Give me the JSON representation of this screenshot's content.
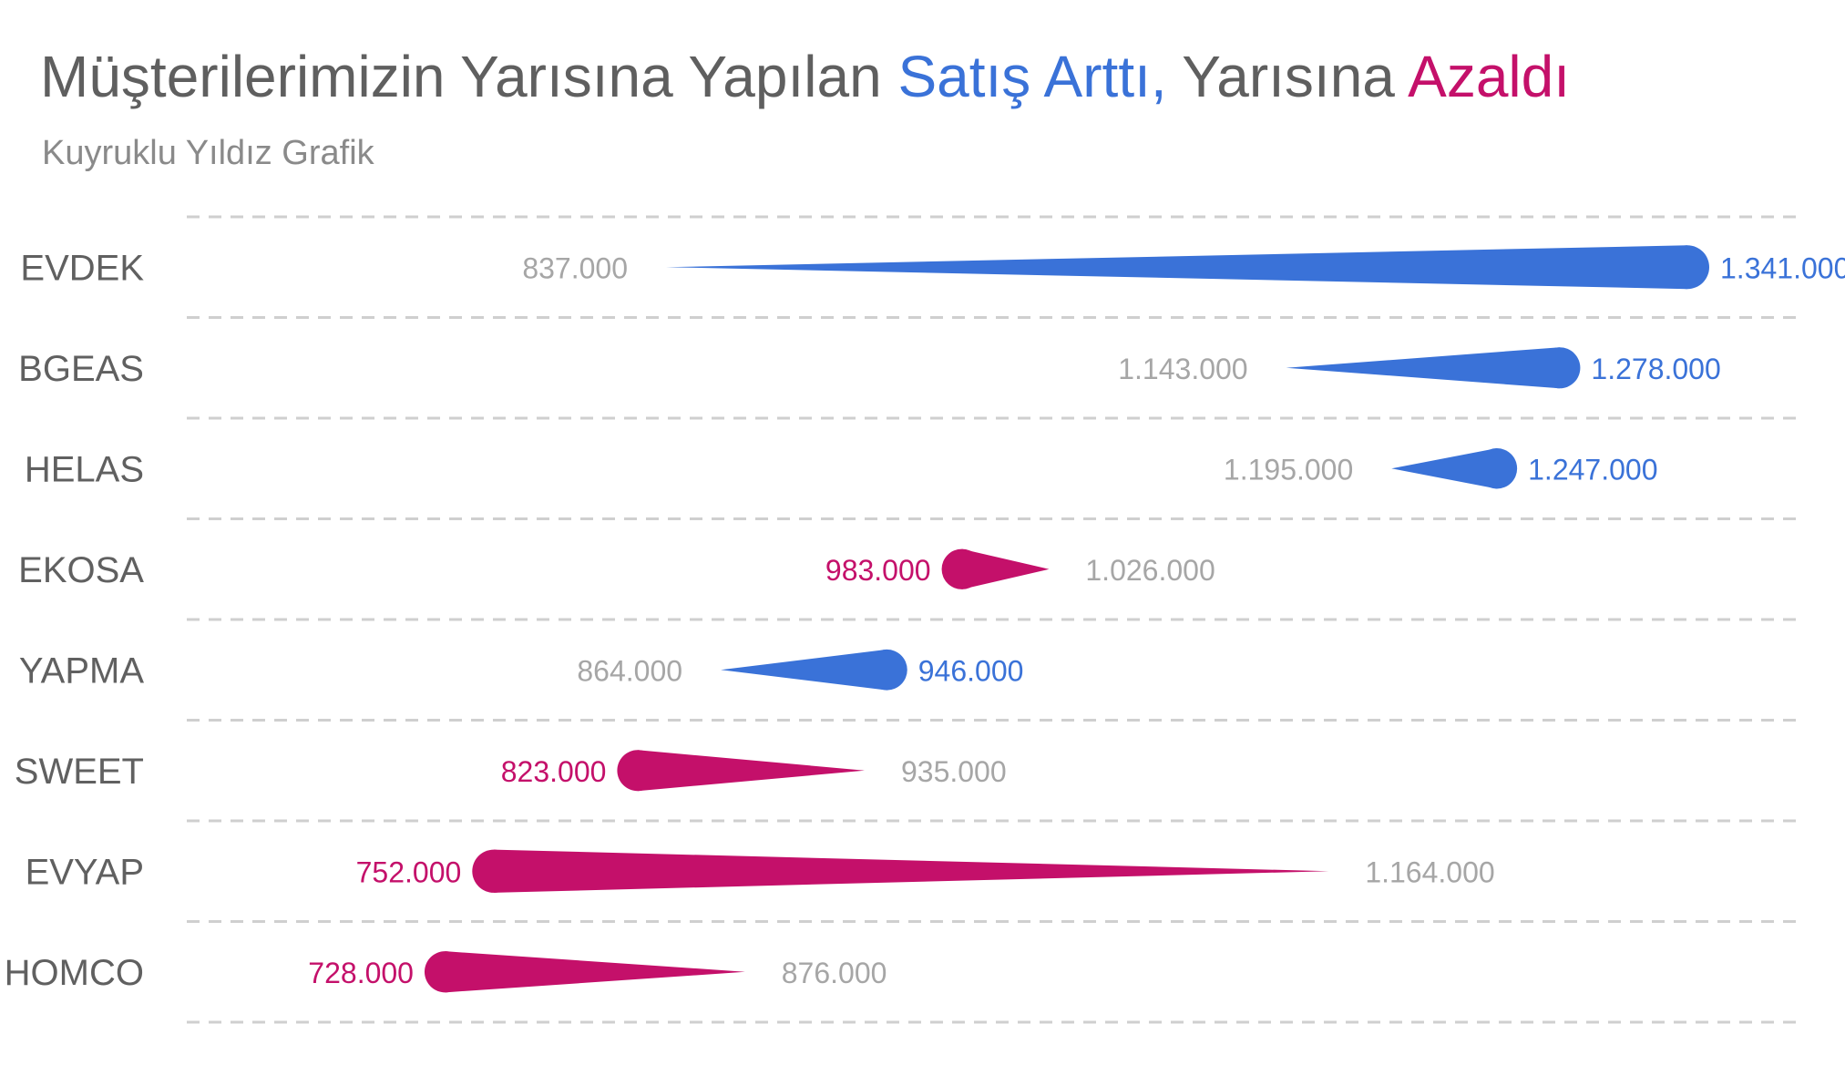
{
  "title": {
    "part1": "Müşterilerimizin Yarısına Yapılan ",
    "part2": "Satış Arttı,",
    "part3": " Yarısına ",
    "part4": "Azaldı",
    "color_increase": "#3a72d8",
    "color_decrease": "#c4106a"
  },
  "subtitle": "Kuyruklu Yıldız Grafik",
  "chart_data": {
    "type": "comet",
    "title": "Müşterilerimizin Yarısına Yapılan Satış Arttı, Yarısına Azaldı",
    "subtitle": "Kuyruklu Yıldız Grafik",
    "xlim": [
      620000,
      1420000
    ],
    "grid": true,
    "colors": {
      "increase": "#3a72d8",
      "decrease": "#c4106a",
      "start_label": "#a6a6a6"
    },
    "rows": [
      {
        "category": "EVDEK",
        "start": 837000,
        "end": 1341000,
        "start_label": "837.000",
        "end_label": "1.341.000"
      },
      {
        "category": "BGEAS",
        "start": 1143000,
        "end": 1278000,
        "start_label": "1.143.000",
        "end_label": "1.278.000"
      },
      {
        "category": "HELAS",
        "start": 1195000,
        "end": 1247000,
        "start_label": "1.195.000",
        "end_label": "1.247.000"
      },
      {
        "category": "EKOSA",
        "start": 1026000,
        "end": 983000,
        "start_label": "1.026.000",
        "end_label": "983.000"
      },
      {
        "category": "YAPMA",
        "start": 864000,
        "end": 946000,
        "start_label": "864.000",
        "end_label": "946.000"
      },
      {
        "category": "SWEET",
        "start": 935000,
        "end": 823000,
        "start_label": "935.000",
        "end_label": "823.000"
      },
      {
        "category": "EVYAP",
        "start": 1164000,
        "end": 752000,
        "start_label": "1.164.000",
        "end_label": "752.000"
      },
      {
        "category": "HOMCO",
        "start": 876000,
        "end": 728000,
        "start_label": "876.000",
        "end_label": "728.000"
      }
    ]
  }
}
